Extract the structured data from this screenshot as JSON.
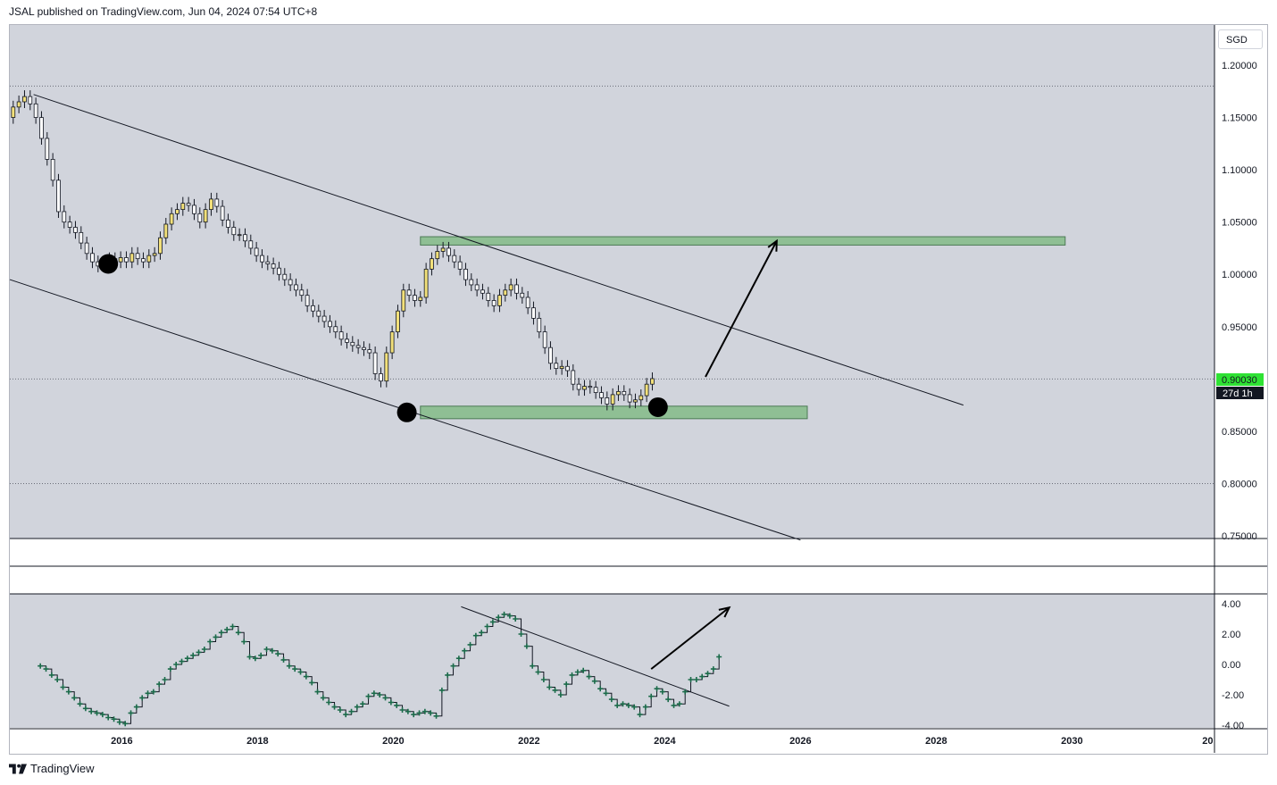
{
  "header": {
    "publisher": "JSAL published on TradingView.com, Jun 04, 2024 07:54 UTC+8"
  },
  "currency": "SGD",
  "price_label": "0.90030",
  "countdown_label": "27d 1h",
  "footer": {
    "brand": "TradingView"
  },
  "colors": {
    "background": "#d1d4dc",
    "zone_fill": "#8fbf94",
    "up_candle": "#f2e07a",
    "down_candle": "#ffffff",
    "price_badge": "#2fe234",
    "indicator_marker": "#1b6b4a"
  },
  "icons": {
    "logo": "tradingview-logo-icon"
  },
  "chart_data": [
    {
      "type": "candlestick",
      "title": "",
      "ylim": [
        0.75,
        1.2
      ],
      "yticks": [
        "1.20000",
        "1.15000",
        "1.10000",
        "1.05000",
        "1.00000",
        "0.95000",
        "0.90000",
        "0.85000",
        "0.80000",
        "0.75000"
      ],
      "xticks": [
        "2016",
        "2018",
        "2020",
        "2022",
        "2024",
        "2026",
        "2028",
        "2030",
        "20"
      ],
      "xlim": [
        2014.35,
        2032.1
      ],
      "series": [
        {
          "interval": "monthly",
          "start": 2014.4,
          "close": [
            1.16,
            1.165,
            1.17,
            1.163,
            1.15,
            1.13,
            1.11,
            1.09,
            1.06,
            1.05,
            1.045,
            1.04,
            1.03,
            1.02,
            1.012,
            1.008,
            1.01,
            1.015,
            1.012,
            1.016,
            1.012,
            1.02,
            1.015,
            1.012,
            1.018,
            1.02,
            1.035,
            1.048,
            1.058,
            1.062,
            1.068,
            1.066,
            1.058,
            1.05,
            1.062,
            1.072,
            1.065,
            1.052,
            1.045,
            1.038,
            1.038,
            1.032,
            1.025,
            1.018,
            1.012,
            1.01,
            1.006,
            1.0,
            0.995,
            0.99,
            0.985,
            0.98,
            0.97,
            0.965,
            0.96,
            0.955,
            0.95,
            0.945,
            0.938,
            0.935,
            0.932,
            0.93,
            0.928,
            0.925,
            0.905,
            0.898,
            0.925,
            0.945,
            0.965,
            0.985,
            0.98,
            0.975,
            0.978,
            1.005,
            1.015,
            1.022,
            1.025,
            1.018,
            1.012,
            1.005,
            0.995,
            0.99,
            0.985,
            0.982,
            0.975,
            0.97,
            0.98,
            0.985,
            0.99,
            0.982,
            0.978,
            0.968,
            0.958,
            0.945,
            0.93,
            0.915,
            0.91,
            0.912,
            0.908,
            0.895,
            0.89,
            0.893,
            0.892,
            0.887,
            0.882,
            0.876,
            0.885,
            0.888,
            0.885,
            0.878,
            0.88,
            0.884,
            0.895,
            0.9003
          ]
        }
      ],
      "markers": [
        {
          "label": "low",
          "x": 2015.8,
          "y": 1.01
        },
        {
          "label": "low",
          "x": 2020.2,
          "y": 0.868
        },
        {
          "label": "low",
          "x": 2023.9,
          "y": 0.873
        }
      ],
      "zones": [
        {
          "x": [
            2020.4,
            2029.9
          ],
          "y": [
            1.028,
            1.036
          ]
        },
        {
          "x": [
            2020.4,
            2026.1
          ],
          "y": [
            0.862,
            0.874
          ]
        }
      ],
      "trendlines": [
        {
          "x": [
            2014.7,
            2028.4
          ],
          "y": [
            1.172,
            0.875
          ]
        },
        {
          "x": [
            2014.35,
            2026.0
          ],
          "y": [
            0.995,
            0.746
          ]
        }
      ],
      "arrows": [
        {
          "x": [
            2024.6,
            2025.65
          ],
          "y": [
            0.902,
            1.032
          ]
        }
      ]
    },
    {
      "type": "scatter",
      "title": "",
      "ylim": [
        -4,
        4
      ],
      "yticks": [
        "4.00",
        "2.00",
        "0.00",
        "-2.00",
        "-4.00"
      ],
      "series": [
        {
          "start": 2014.8,
          "values": [
            -0.1,
            -0.3,
            -0.7,
            -1.0,
            -1.5,
            -1.8,
            -2.2,
            -2.6,
            -2.9,
            -3.1,
            -3.2,
            -3.3,
            -3.5,
            -3.6,
            -3.8,
            -3.9,
            -3.2,
            -2.8,
            -2.2,
            -1.9,
            -1.8,
            -1.3,
            -1.0,
            -0.3,
            0.0,
            0.2,
            0.4,
            0.6,
            0.8,
            1.0,
            1.5,
            1.8,
            2.1,
            2.3,
            2.5,
            2.1,
            1.5,
            0.5,
            0.4,
            0.6,
            1.0,
            0.9,
            0.7,
            0.3,
            -0.1,
            -0.3,
            -0.5,
            -0.8,
            -1.2,
            -1.8,
            -2.2,
            -2.5,
            -2.8,
            -3.0,
            -3.3,
            -3.1,
            -2.8,
            -2.6,
            -2.1,
            -1.9,
            -2.0,
            -2.2,
            -2.5,
            -2.7,
            -3.0,
            -3.1,
            -3.3,
            -3.2,
            -3.1,
            -3.2,
            -3.4,
            -1.7,
            -0.7,
            -0.1,
            0.4,
            0.9,
            1.3,
            1.9,
            2.1,
            2.5,
            2.8,
            3.1,
            3.3,
            3.2,
            3.0,
            2.0,
            1.2,
            -0.1,
            -0.5,
            -1.0,
            -1.5,
            -1.7,
            -2.0,
            -1.3,
            -0.7,
            -0.5,
            -0.4,
            -0.8,
            -1.1,
            -1.6,
            -1.9,
            -2.3,
            -2.7,
            -2.6,
            -2.7,
            -2.8,
            -3.3,
            -2.8,
            -2.1,
            -1.6,
            -1.8,
            -2.3,
            -2.7,
            -2.6,
            -1.8,
            -1.0,
            -1.0,
            -0.8,
            -0.6,
            -0.3,
            0.5
          ]
        }
      ],
      "trendlines": [
        {
          "x": [
            2021.0,
            2024.95
          ],
          "y": [
            3.8,
            -2.75
          ]
        }
      ],
      "arrows": [
        {
          "x": [
            2023.8,
            2024.95
          ],
          "y": [
            -0.3,
            3.75
          ]
        }
      ]
    }
  ]
}
